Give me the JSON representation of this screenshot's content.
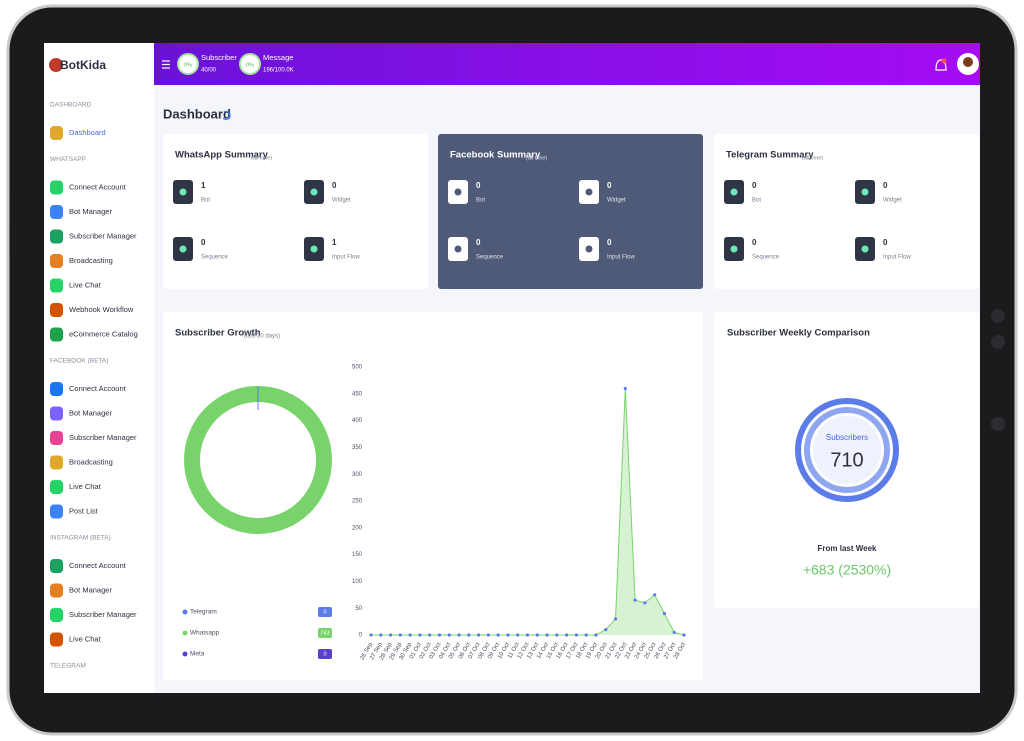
{
  "sidebar": {
    "logo": "BotKida",
    "sections": [
      {
        "title": "DASHBOARD",
        "items": [
          "Dashboard"
        ]
      },
      {
        "title": "WHATSAPP",
        "items": [
          "Connect Account",
          "Bot Manager",
          "Subscriber Manager",
          "Broadcasting",
          "Live Chat",
          "Webhook Workflow",
          "eCommerce Catalog"
        ]
      },
      {
        "title": "FACEBOOK (BETA)",
        "items": [
          "Connect Account",
          "Bot Manager",
          "Subscriber Manager",
          "Broadcasting",
          "Live Chat",
          "Post List"
        ]
      },
      {
        "title": "INSTAGRAM (BETA)",
        "items": [
          "Connect Account",
          "Bot Manager",
          "Subscriber Manager",
          "Live Chat"
        ]
      },
      {
        "title": "TELEGRAM",
        "items": []
      }
    ]
  },
  "header": {
    "stats": [
      {
        "percent": "0%",
        "label": "Subscriber",
        "value": "40/00"
      },
      {
        "percent": "0%",
        "label": "Message",
        "value": "196/100.0K"
      }
    ]
  },
  "page_title": "Dashboard",
  "summaries": [
    {
      "title": "WhatsApp Summary",
      "note": "(all time)",
      "items": [
        {
          "value": "1",
          "label": "Bot"
        },
        {
          "value": "0",
          "label": "Widget"
        },
        {
          "value": "0",
          "label": "Sequence"
        },
        {
          "value": "1",
          "label": "Input Flow"
        }
      ]
    },
    {
      "title": "Facebook Summary",
      "note": "(all time)",
      "items": [
        {
          "value": "0",
          "label": "Bot"
        },
        {
          "value": "0",
          "label": "Widget"
        },
        {
          "value": "0",
          "label": "Sequence"
        },
        {
          "value": "0",
          "label": "Input Flow"
        }
      ]
    },
    {
      "title": "Telegram Summary",
      "note": "(all time)",
      "items": [
        {
          "value": "0",
          "label": "Bot"
        },
        {
          "value": "0",
          "label": "Widget"
        },
        {
          "value": "0",
          "label": "Sequence"
        },
        {
          "value": "0",
          "label": "Input Flow"
        }
      ]
    }
  ],
  "subscriber_growth": {
    "title": "Subscriber Growth",
    "note": "(last 30 days)",
    "donut": {
      "type": "pie",
      "categories": [
        "Telegram",
        "Whatsapp",
        "Meta"
      ],
      "values": [
        0,
        743,
        0
      ],
      "colors": [
        "#5b7be8",
        "#78d36b",
        "#5a3fd1"
      ]
    },
    "line": {
      "type": "area",
      "categories": [
        "26 Sep",
        "27 Sep",
        "28 Sep",
        "29 Sep",
        "30 Sep",
        "01 Oct",
        "02 Oct",
        "03 Oct",
        "04 Oct",
        "05 Oct",
        "06 Oct",
        "07 Oct",
        "08 Oct",
        "09 Oct",
        "10 Oct",
        "11 Oct",
        "12 Oct",
        "13 Oct",
        "14 Oct",
        "15 Oct",
        "16 Oct",
        "17 Oct",
        "18 Oct",
        "19 Oct",
        "20 Oct",
        "21 Oct",
        "22 Oct",
        "23 Oct",
        "24 Oct",
        "25 Oct",
        "26 Oct",
        "27 Oct",
        "28 Oct"
      ],
      "series": [
        {
          "color": "#78d36b",
          "values": [
            0,
            0,
            0,
            0,
            0,
            0,
            0,
            0,
            0,
            0,
            0,
            0,
            0,
            0,
            0,
            0,
            0,
            0,
            0,
            0,
            0,
            0,
            0,
            0,
            10,
            30,
            460,
            65,
            60,
            75,
            40,
            5,
            0
          ]
        }
      ],
      "ylim": [
        0,
        500
      ],
      "yticks": [
        0,
        50,
        100,
        150,
        200,
        250,
        300,
        350,
        400,
        450,
        500
      ]
    }
  },
  "weekly": {
    "title": "Subscriber Weekly Comparison",
    "label": "Subscribers",
    "value": "710",
    "caption": "From last Week",
    "change": "+683 (2530%)"
  }
}
